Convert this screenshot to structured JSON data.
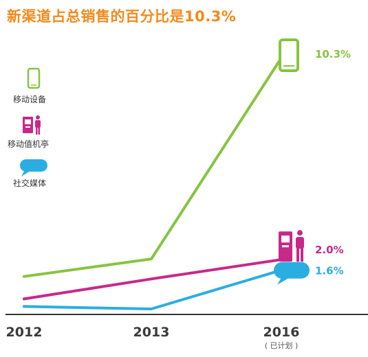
{
  "title": "新渠道占总销售的百分比是10.3%",
  "colors": {
    "title": "#f18a1c",
    "mobile": "#86c440",
    "kiosk": "#c8288a",
    "social": "#2aaee1",
    "axis": "#333333"
  },
  "legend": {
    "mobile": {
      "label": "移动设备",
      "icon": "smartphone-icon"
    },
    "kiosk": {
      "label": "移动值机亭",
      "icon": "kiosk-icon"
    },
    "social": {
      "label": "社交媒体",
      "icon": "speech-bubble-icon"
    }
  },
  "chart_data": {
    "type": "line",
    "title": "新渠道占总销售的百分比是10.3%",
    "categories": [
      "2012",
      "2013",
      "2016"
    ],
    "category_note": "( 已计划 )",
    "series": [
      {
        "name": "移动设备",
        "key": "mobile",
        "values": [
          1.3,
          2.0,
          10.3
        ],
        "end_label": "10.3%"
      },
      {
        "name": "移动值机亭",
        "key": "kiosk",
        "values": [
          0.4,
          1.2,
          2.0
        ],
        "end_label": "2.0%"
      },
      {
        "name": "社交媒体",
        "key": "social",
        "values": [
          0.1,
          0.0,
          1.6
        ],
        "end_label": "1.6%"
      }
    ],
    "ylim": [
      0,
      10.3
    ],
    "xlabel": "",
    "ylabel": "",
    "grid": false,
    "legend_position": "left"
  }
}
